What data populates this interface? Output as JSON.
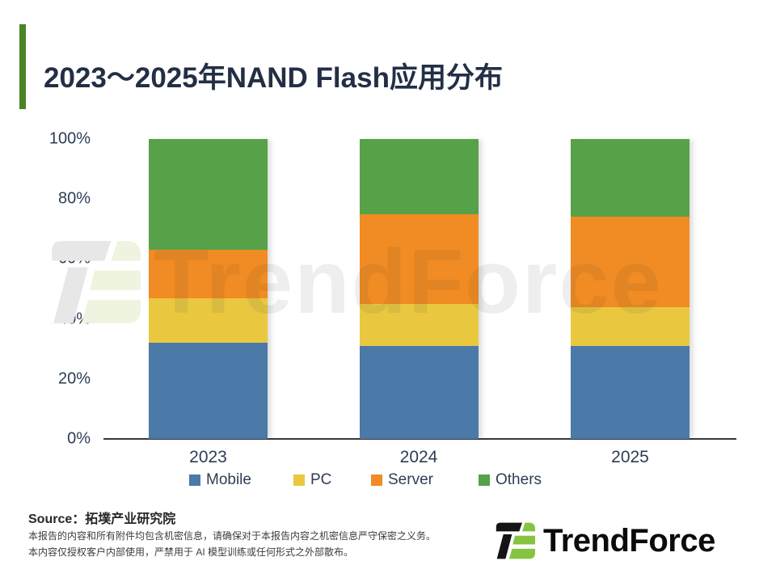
{
  "title": "2023～2025年NAND Flash应用分布",
  "chart_data": {
    "type": "bar",
    "stacked": true,
    "title": "2023～2025年NAND Flash应用分布",
    "categories": [
      "2023",
      "2024",
      "2025"
    ],
    "series": [
      {
        "name": "Mobile",
        "color": "#4b79a8",
        "values": [
          32,
          31,
          31
        ]
      },
      {
        "name": "PC",
        "color": "#e9c840",
        "values": [
          15,
          14,
          13
        ]
      },
      {
        "name": "Server",
        "color": "#f18b23",
        "values": [
          16,
          30,
          30
        ]
      },
      {
        "name": "Others",
        "color": "#57a149",
        "values": [
          37,
          25,
          26
        ]
      }
    ],
    "xlabel": "",
    "ylabel": "",
    "ylim": [
      0,
      100
    ],
    "yticks": [
      "0%",
      "20%",
      "40%",
      "60%",
      "80%",
      "100%"
    ],
    "grid": false,
    "legend_position": "bottom",
    "units": "percent share of NAND Flash applications"
  },
  "watermark": {
    "text": "TrendForce"
  },
  "footer": {
    "source_label": "Source：拓墣产业研究院",
    "disclaimer_line1": "本报告的内容和所有附件均包含机密信息，请确保对于本报告内容之机密信息严守保密之义务。",
    "disclaimer_line2": "本内容仅授权客户内部使用，严禁用于 AI 模型训练或任何形式之外部散布。",
    "logo_text": "TrendForce"
  },
  "colors": {
    "accent_green": "#4a8426",
    "title_navy": "#232f45",
    "axis_text": "#2e3d55",
    "logo_green": "#85c440",
    "logo_black": "#141414"
  }
}
